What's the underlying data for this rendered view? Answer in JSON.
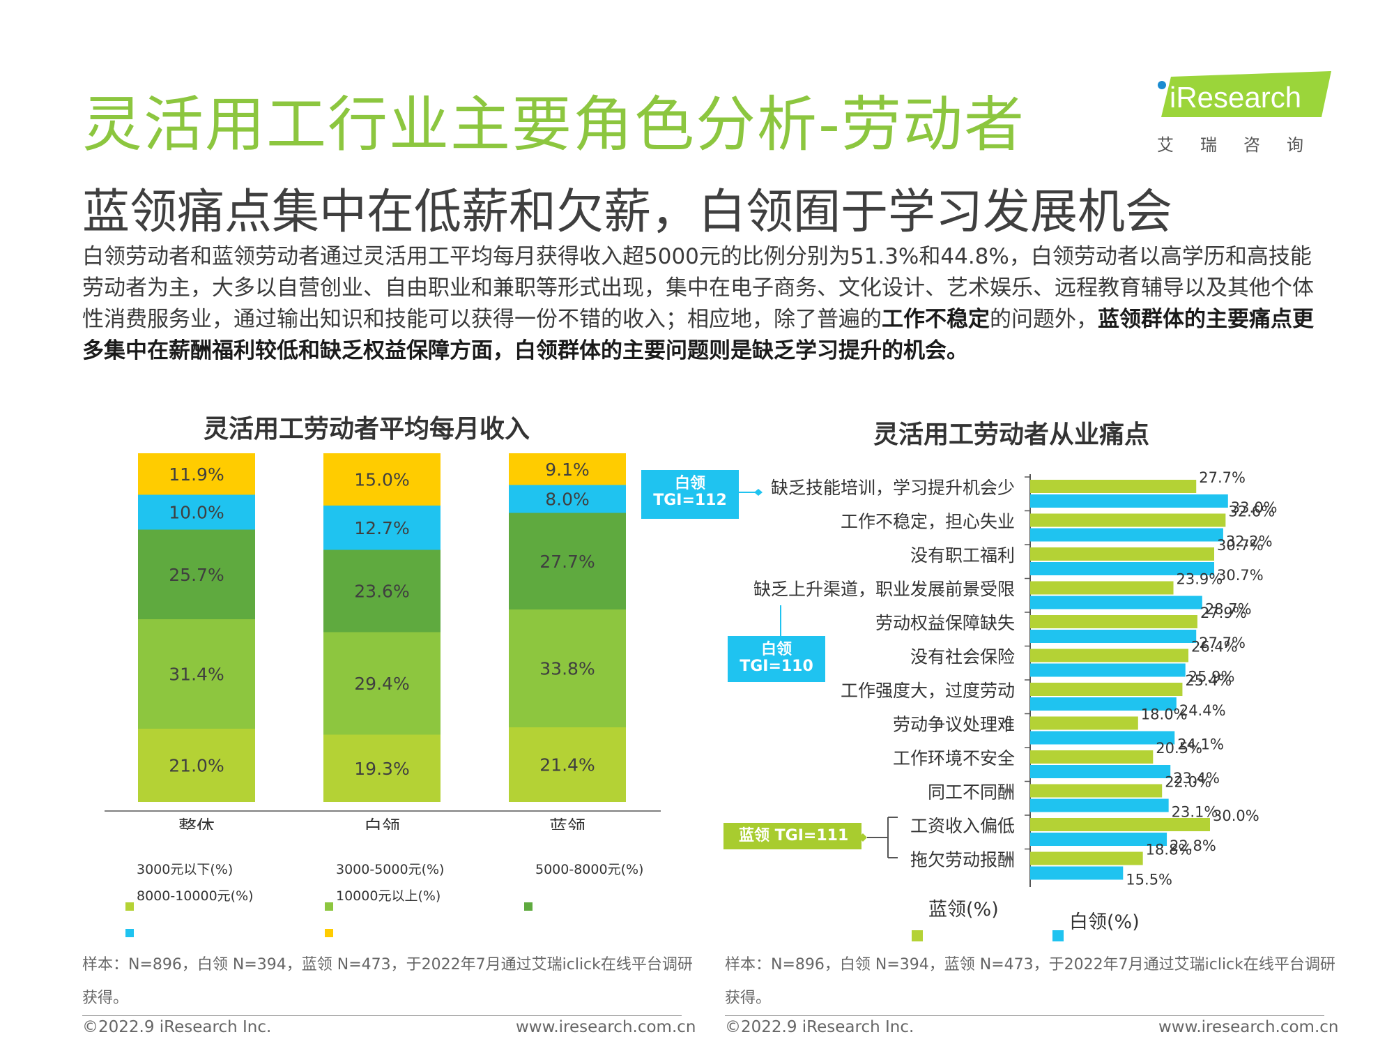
{
  "page": {
    "title": "灵活用工行业主要角色分析-劳动者",
    "subtitle": "蓝领痛点集中在低薪和欠薪，白领囿于学习发展机会",
    "body_text_1": "白领劳动者和蓝领劳动者通过灵活用工平均每月获得收入超5000元的比例分别为51.3%和44.8%，白领劳动者以高学历和高技能劳动者为主，大多以自营创业、自由职业和兼职等形式出现，集中在电子商务、文化设计、艺术娱乐、远程教育辅导以及其他个体性消费服务业，通过输出知识和技能可以获得一份不错的收入；相应地，除了普遍的",
    "body_bold_1": "工作不稳定",
    "body_text_2": "的问题外，",
    "body_bold_2": "蓝领群体的主要痛点更多集中在薪酬福利较低和缺乏权益保障方面，白领群体的主要问题则是缺乏学习提升的机会。"
  },
  "logo": {
    "brand": "iResearch",
    "sub": "艾瑞咨询"
  },
  "colors": {
    "title_green": "#8cc63f",
    "yellow": "#ffcc00",
    "cyan": "#1fc3f0",
    "dark_green": "#5faa3f",
    "mid_green": "#8dc63f",
    "lime": "#b4d235",
    "blue_bar": "#1fc3f0"
  },
  "chart_data": [
    {
      "type": "bar",
      "stacked": true,
      "title": "灵活用工劳动者平均每月收入",
      "categories": [
        "整体",
        "白领",
        "蓝领"
      ],
      "series": [
        {
          "name": "3000元以下(%)",
          "color": "#b4d235",
          "values": [
            21.0,
            19.3,
            21.4
          ]
        },
        {
          "name": "3000-5000元(%)",
          "color": "#8dc63f",
          "values": [
            31.4,
            29.4,
            33.8
          ]
        },
        {
          "name": "5000-8000元(%)",
          "color": "#5faa3f",
          "values": [
            25.7,
            23.6,
            27.7
          ]
        },
        {
          "name": "8000-10000元(%)",
          "color": "#1fc3f0",
          "values": [
            10.0,
            12.7,
            8.0
          ]
        },
        {
          "name": "10000元以上(%)",
          "color": "#ffcc00",
          "values": [
            11.9,
            15.0,
            9.1
          ]
        }
      ],
      "value_labels": [
        "11.9%",
        "10.0%",
        "25.7%",
        "31.4%",
        "21.0%",
        "15.0%",
        "12.7%",
        "23.6%",
        "29.4%",
        "19.3%",
        "9.1%",
        "8.0%",
        "27.7%",
        "33.8%",
        "21.4%"
      ],
      "source": "样本：N=896，白领 N=394，蓝领 N=473，于2022年7月通过艾瑞iclick在线平台调研获得。",
      "footer_left": "©2022.9 iResearch Inc.",
      "footer_right": "www.iresearch.com.cn"
    },
    {
      "type": "bar",
      "orientation": "horizontal",
      "title": "灵活用工劳动者从业痛点",
      "categories": [
        "缺乏技能培训，学习提升机会少",
        "工作不稳定，担心失业",
        "没有职工福利",
        "缺乏上升渠道，职业发展前景受限",
        "劳动权益保障缺失",
        "没有社会保险",
        "工作强度大，过度劳动",
        "劳动争议处理难",
        "工作环境不安全",
        "同工不同酬",
        "工资收入偏低",
        "拖欠劳动报酬"
      ],
      "series": [
        {
          "name": "蓝领(%)",
          "color": "#b4d235",
          "values": [
            27.7,
            32.6,
            30.7,
            23.9,
            27.9,
            26.4,
            25.4,
            18.0,
            20.5,
            22.0,
            30.0,
            18.8
          ]
        },
        {
          "name": "白领(%)",
          "color": "#1fc3f0",
          "values": [
            33.0,
            32.2,
            30.7,
            28.7,
            27.7,
            25.9,
            24.4,
            24.1,
            23.4,
            23.1,
            22.8,
            15.5
          ]
        }
      ],
      "value_labels_blue": [
        "27.7%",
        "32.6%",
        "30.7%",
        "23.9%",
        "27.9%",
        "26.4%",
        "25.4%",
        "18.0%",
        "20.5%",
        "22.0%",
        "30.0%",
        "18.8%"
      ],
      "value_labels_white": [
        "33.0%",
        "32.2%",
        "30.7%",
        "28.7%",
        "27.7%",
        "25.9%",
        "24.4%",
        "24.1%",
        "23.4%",
        "23.1%",
        "22.8%",
        "15.5%"
      ],
      "annotations": {
        "tgi1_a": "白领",
        "tgi1_b": "TGI=112",
        "tgi2_a": "白领",
        "tgi2_b": "TGI=110",
        "tgi3": "蓝领 TGI=111"
      },
      "source": "样本：N=896，白领 N=394，蓝领 N=473，于2022年7月通过艾瑞iclick在线平台调研获得。",
      "footer_left": "©2022.9 iResearch Inc.",
      "footer_right": "www.iresearch.com.cn"
    }
  ]
}
